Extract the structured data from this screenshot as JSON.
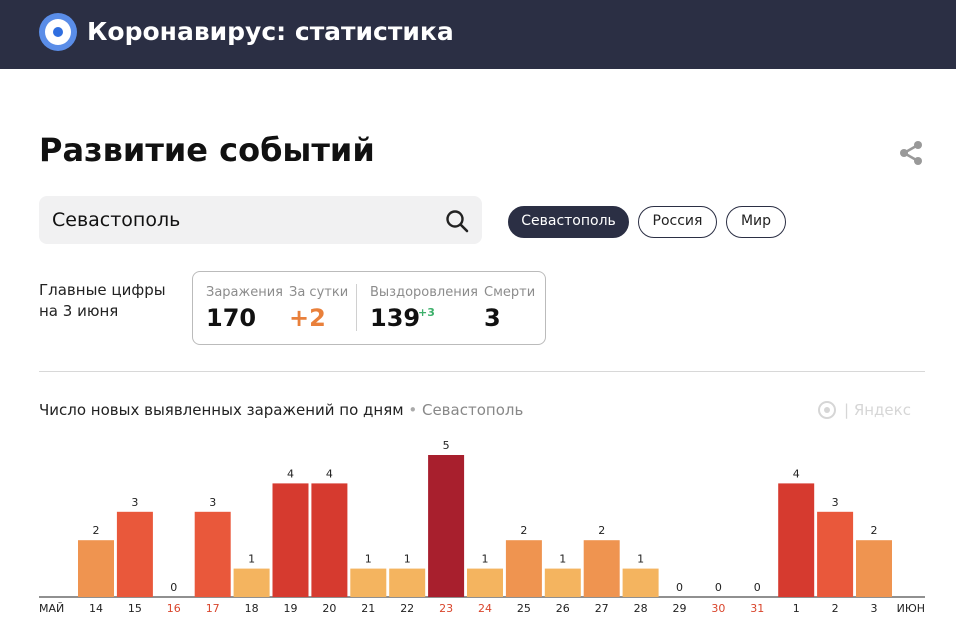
{
  "header": {
    "app_title": "Коронавирус: статистика"
  },
  "page": {
    "title": "Развитие событий"
  },
  "search": {
    "value": "Севастополь"
  },
  "region_chips": [
    {
      "label": "Севастополь",
      "active": true
    },
    {
      "label": "Россия",
      "active": false
    },
    {
      "label": "Мир",
      "active": false
    }
  ],
  "stats": {
    "label_line1": "Главные цифры",
    "label_line2": "на 3 июня",
    "infections": {
      "caption": "Заражения",
      "value": "170"
    },
    "per_day": {
      "caption": "За сутки",
      "value": "+2"
    },
    "recoveries": {
      "caption": "Выздоровления",
      "value": "139",
      "delta": "+3"
    },
    "deaths": {
      "caption": "Смерти",
      "value": "3"
    }
  },
  "chart_header": {
    "title": "Число новых выявленных заражений по дням",
    "separator": "•",
    "region": "Севастополь",
    "brand": "| Яндекс"
  },
  "chart_data": {
    "type": "bar",
    "title": "Число новых выявленных заражений по дням",
    "month_start_label": "МАЙ",
    "month_end_label": "ИЮН",
    "categories": [
      "14",
      "15",
      "16",
      "17",
      "18",
      "19",
      "20",
      "21",
      "22",
      "23",
      "24",
      "25",
      "26",
      "27",
      "28",
      "29",
      "30",
      "31",
      "1",
      "2",
      "3"
    ],
    "values": [
      2,
      3,
      0,
      3,
      1,
      4,
      4,
      1,
      1,
      5,
      1,
      2,
      1,
      2,
      1,
      0,
      0,
      0,
      4,
      3,
      2
    ],
    "weekend": [
      false,
      false,
      true,
      true,
      false,
      false,
      false,
      false,
      false,
      true,
      true,
      false,
      false,
      false,
      false,
      false,
      true,
      true,
      false,
      false,
      false
    ],
    "color_scale": {
      "1": "#f4b45f",
      "2": "#ef9450",
      "3": "#e9583b",
      "4": "#d63a2f",
      "5": "#a81f2d"
    },
    "weekend_label_color": "#d9452c",
    "grid": false
  }
}
